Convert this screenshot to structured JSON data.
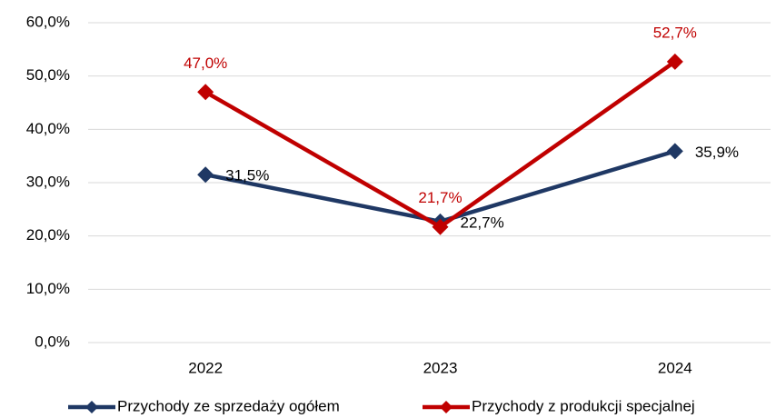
{
  "chart_data": {
    "type": "line",
    "categories": [
      "2022",
      "2023",
      "2024"
    ],
    "series": [
      {
        "name": "Przychody ze sprzedaży ogółem",
        "color": "#1f3864",
        "values": [
          31.5,
          22.7,
          35.9
        ],
        "value_labels": [
          "31,5%",
          "22,7%",
          "35,9%"
        ],
        "label_color": "#000000"
      },
      {
        "name": "Przychody z produkcji specjalnej",
        "color": "#c00000",
        "values": [
          47.0,
          21.7,
          52.7
        ],
        "value_labels": [
          "47,0%",
          "21,7%",
          "52,7%"
        ],
        "label_color": "#c00000"
      }
    ],
    "ylim": [
      0,
      60
    ],
    "yticks": [
      {
        "value": 0,
        "label": "0,0%"
      },
      {
        "value": 10,
        "label": "10,0%"
      },
      {
        "value": 20,
        "label": "20,0%"
      },
      {
        "value": 30,
        "label": "30,0%"
      },
      {
        "value": 40,
        "label": "40,0%"
      },
      {
        "value": 50,
        "label": "50,0%"
      },
      {
        "value": 60,
        "label": "60,0%"
      }
    ],
    "grid": true,
    "legend": "bottom"
  }
}
